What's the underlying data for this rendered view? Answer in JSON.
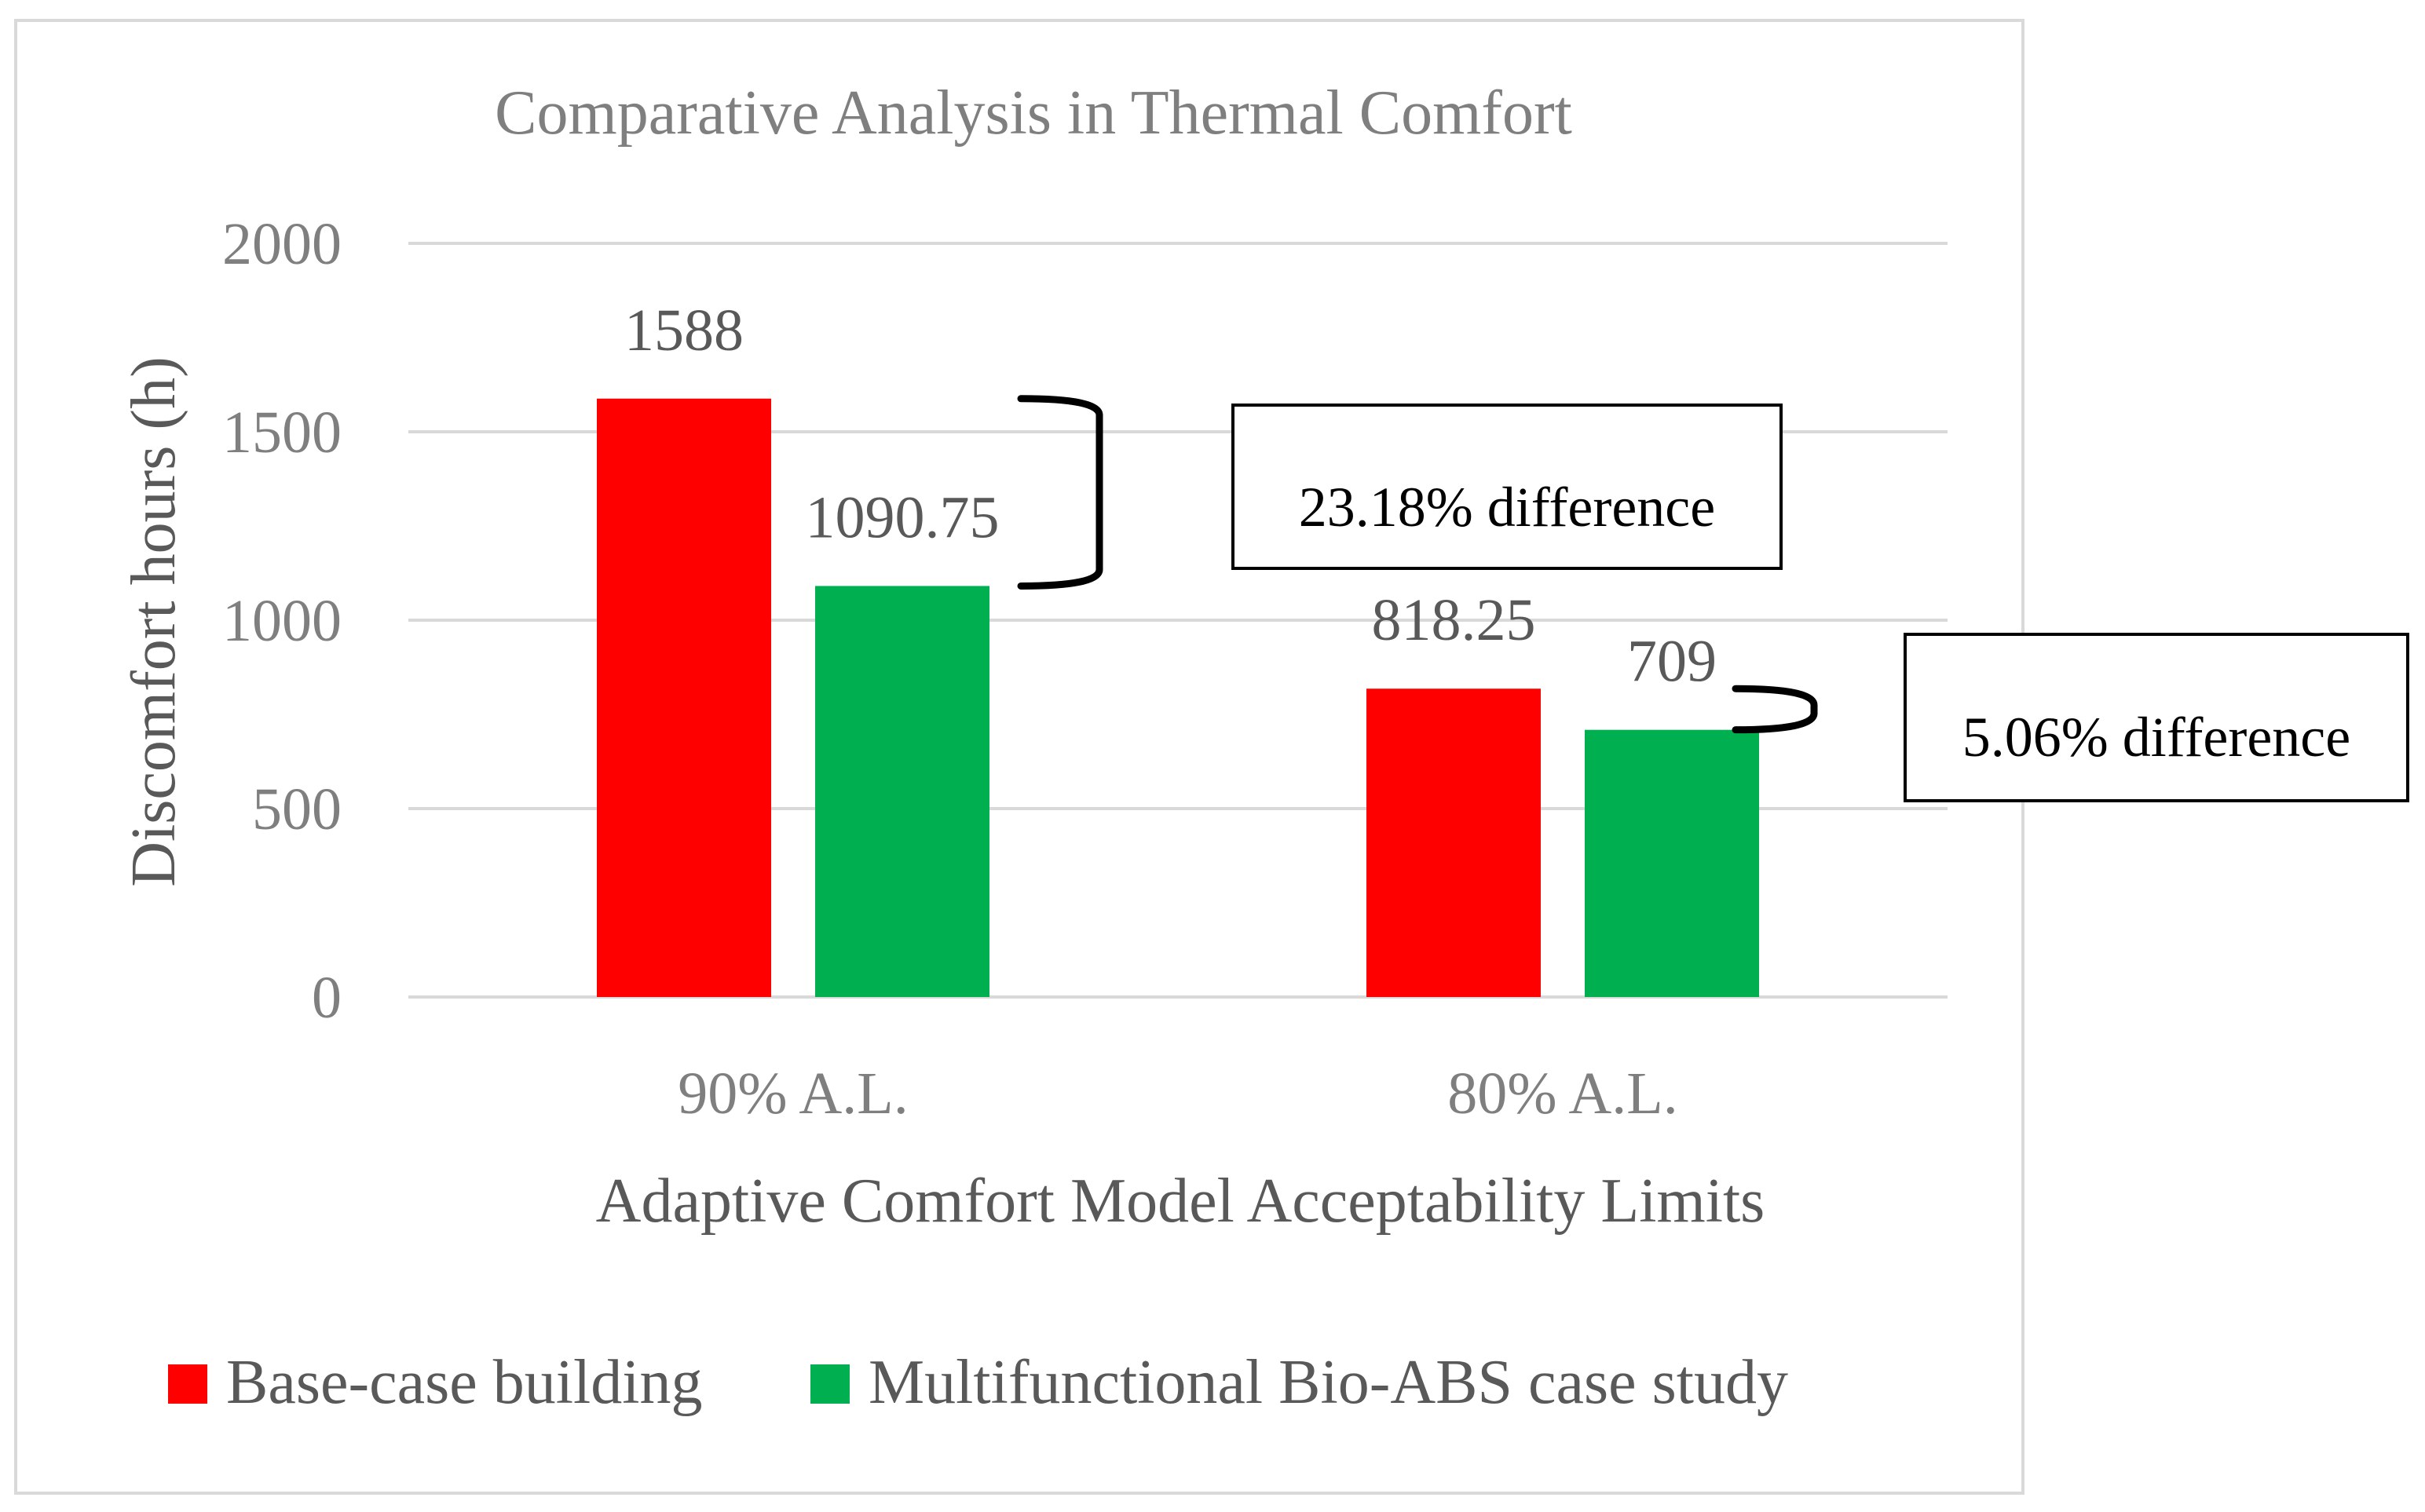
{
  "chart_data": {
    "type": "bar",
    "title": "Comparative Analysis in Thermal Comfort",
    "xlabel": "Adaptive Comfort Model Acceptability Limits",
    "ylabel": "Discomfort hours (h)",
    "ylim": [
      0,
      2000
    ],
    "yticks": [
      0,
      500,
      1000,
      1500,
      2000
    ],
    "grid": true,
    "legend_position": "bottom",
    "categories": [
      "90% A.L.",
      "80% A.L."
    ],
    "series": [
      {
        "name": "Base-case building",
        "color": "#ff0000",
        "values": [
          1588,
          818.25
        ],
        "labels": [
          "1588",
          "818.25"
        ]
      },
      {
        "name": "Multifunctional Bio-ABS case study",
        "color": "#00b050",
        "values": [
          1090.75,
          709
        ],
        "labels": [
          "1090.75",
          "709"
        ]
      }
    ],
    "annotations": [
      {
        "text": "23.18% difference",
        "category": "90% A.L.",
        "from": 1588,
        "to": 1090.75
      },
      {
        "text": "5.06% difference",
        "category": "80% A.L.",
        "from": 818.25,
        "to": 709
      }
    ]
  }
}
